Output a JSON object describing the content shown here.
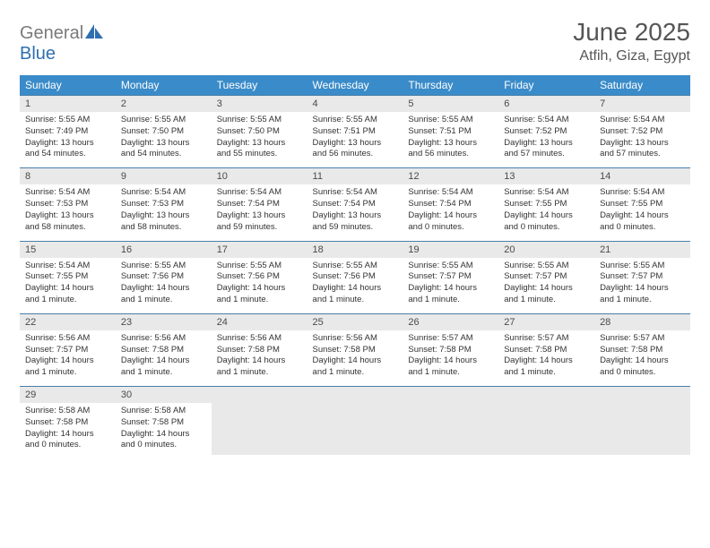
{
  "brand": {
    "name_gray": "General",
    "name_blue": "Blue",
    "icon_color": "#2f6fb0"
  },
  "header": {
    "title": "June 2025",
    "location": "Atfih, Giza, Egypt"
  },
  "colors": {
    "header_bar": "#3a8bc9",
    "daynum_bg": "#e9e9e9",
    "cell_border": "#4a7fa8",
    "text": "#333333",
    "title_text": "#555555"
  },
  "day_headers": [
    "Sunday",
    "Monday",
    "Tuesday",
    "Wednesday",
    "Thursday",
    "Friday",
    "Saturday"
  ],
  "weeks": [
    [
      {
        "n": "1",
        "sr": "5:55 AM",
        "ss": "7:49 PM",
        "dl": "13 hours and 54 minutes."
      },
      {
        "n": "2",
        "sr": "5:55 AM",
        "ss": "7:50 PM",
        "dl": "13 hours and 54 minutes."
      },
      {
        "n": "3",
        "sr": "5:55 AM",
        "ss": "7:50 PM",
        "dl": "13 hours and 55 minutes."
      },
      {
        "n": "4",
        "sr": "5:55 AM",
        "ss": "7:51 PM",
        "dl": "13 hours and 56 minutes."
      },
      {
        "n": "5",
        "sr": "5:55 AM",
        "ss": "7:51 PM",
        "dl": "13 hours and 56 minutes."
      },
      {
        "n": "6",
        "sr": "5:54 AM",
        "ss": "7:52 PM",
        "dl": "13 hours and 57 minutes."
      },
      {
        "n": "7",
        "sr": "5:54 AM",
        "ss": "7:52 PM",
        "dl": "13 hours and 57 minutes."
      }
    ],
    [
      {
        "n": "8",
        "sr": "5:54 AM",
        "ss": "7:53 PM",
        "dl": "13 hours and 58 minutes."
      },
      {
        "n": "9",
        "sr": "5:54 AM",
        "ss": "7:53 PM",
        "dl": "13 hours and 58 minutes."
      },
      {
        "n": "10",
        "sr": "5:54 AM",
        "ss": "7:54 PM",
        "dl": "13 hours and 59 minutes."
      },
      {
        "n": "11",
        "sr": "5:54 AM",
        "ss": "7:54 PM",
        "dl": "13 hours and 59 minutes."
      },
      {
        "n": "12",
        "sr": "5:54 AM",
        "ss": "7:54 PM",
        "dl": "14 hours and 0 minutes."
      },
      {
        "n": "13",
        "sr": "5:54 AM",
        "ss": "7:55 PM",
        "dl": "14 hours and 0 minutes."
      },
      {
        "n": "14",
        "sr": "5:54 AM",
        "ss": "7:55 PM",
        "dl": "14 hours and 0 minutes."
      }
    ],
    [
      {
        "n": "15",
        "sr": "5:54 AM",
        "ss": "7:55 PM",
        "dl": "14 hours and 1 minute."
      },
      {
        "n": "16",
        "sr": "5:55 AM",
        "ss": "7:56 PM",
        "dl": "14 hours and 1 minute."
      },
      {
        "n": "17",
        "sr": "5:55 AM",
        "ss": "7:56 PM",
        "dl": "14 hours and 1 minute."
      },
      {
        "n": "18",
        "sr": "5:55 AM",
        "ss": "7:56 PM",
        "dl": "14 hours and 1 minute."
      },
      {
        "n": "19",
        "sr": "5:55 AM",
        "ss": "7:57 PM",
        "dl": "14 hours and 1 minute."
      },
      {
        "n": "20",
        "sr": "5:55 AM",
        "ss": "7:57 PM",
        "dl": "14 hours and 1 minute."
      },
      {
        "n": "21",
        "sr": "5:55 AM",
        "ss": "7:57 PM",
        "dl": "14 hours and 1 minute."
      }
    ],
    [
      {
        "n": "22",
        "sr": "5:56 AM",
        "ss": "7:57 PM",
        "dl": "14 hours and 1 minute."
      },
      {
        "n": "23",
        "sr": "5:56 AM",
        "ss": "7:58 PM",
        "dl": "14 hours and 1 minute."
      },
      {
        "n": "24",
        "sr": "5:56 AM",
        "ss": "7:58 PM",
        "dl": "14 hours and 1 minute."
      },
      {
        "n": "25",
        "sr": "5:56 AM",
        "ss": "7:58 PM",
        "dl": "14 hours and 1 minute."
      },
      {
        "n": "26",
        "sr": "5:57 AM",
        "ss": "7:58 PM",
        "dl": "14 hours and 1 minute."
      },
      {
        "n": "27",
        "sr": "5:57 AM",
        "ss": "7:58 PM",
        "dl": "14 hours and 1 minute."
      },
      {
        "n": "28",
        "sr": "5:57 AM",
        "ss": "7:58 PM",
        "dl": "14 hours and 0 minutes."
      }
    ],
    [
      {
        "n": "29",
        "sr": "5:58 AM",
        "ss": "7:58 PM",
        "dl": "14 hours and 0 minutes."
      },
      {
        "n": "30",
        "sr": "5:58 AM",
        "ss": "7:58 PM",
        "dl": "14 hours and 0 minutes."
      },
      null,
      null,
      null,
      null,
      null
    ]
  ],
  "labels": {
    "sunrise": "Sunrise:",
    "sunset": "Sunset:",
    "daylight": "Daylight:"
  }
}
